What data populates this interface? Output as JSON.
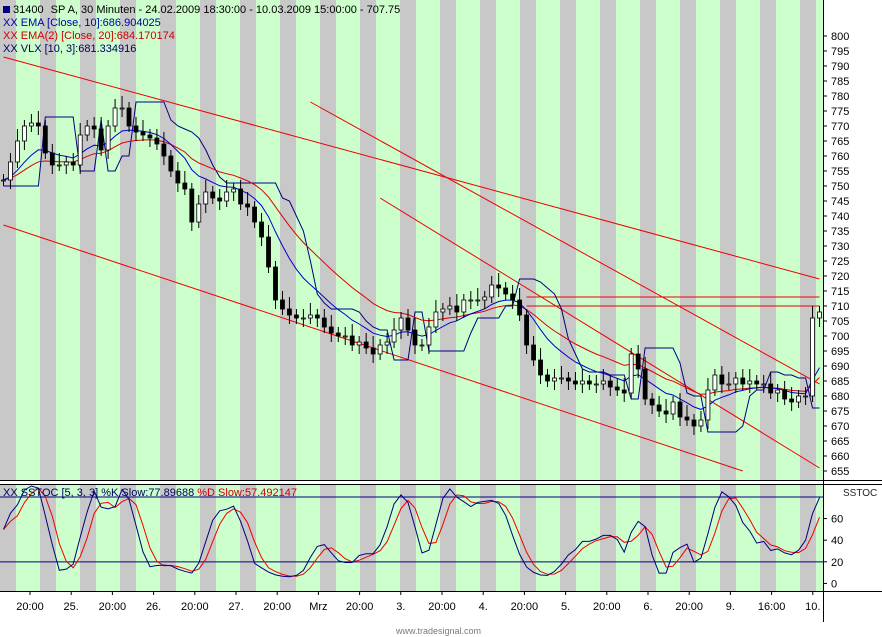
{
  "header": {
    "symbol": "31400",
    "title": "SP A, 30 Minuten - 24.02.2009 18:30:00 - 10.03.2009 15:00:00 - 707.75"
  },
  "legend": {
    "prefix": "XX",
    "ema10": "EMA [Close, 10]:686.904025",
    "ema20": "EMA(2) [Close, 20]:684.170174",
    "vlx": "VLX [10, 3]:681.334916",
    "sstoc_k": "SSTOC [5, 3, 3] %K Slow:77.89688",
    "sstoc_d": "%D Slow:57.492147"
  },
  "panels": {
    "main_label": "",
    "sub_label": "SSTOC"
  },
  "watermark": "www.tradesignal.com",
  "colors": {
    "up_bg": "#ccffcc",
    "gap_bg": "#c8c8c8",
    "price": "#000000",
    "ema10": "#0000cc",
    "ema20": "#dd0000",
    "vlx": "#000080",
    "channel": "#ee0000",
    "k_line": "#000080",
    "d_line": "#ee0000",
    "level_line": "#000080"
  },
  "chart_data": [
    {
      "type": "candlestick",
      "title": "SP A, 30 Minuten",
      "ylim": [
        652,
        812
      ],
      "y_ticks": [
        655,
        660,
        665,
        670,
        675,
        680,
        685,
        690,
        695,
        700,
        705,
        710,
        715,
        720,
        725,
        730,
        735,
        740,
        745,
        750,
        755,
        760,
        765,
        770,
        775,
        780,
        785,
        790,
        795,
        800
      ],
      "x_ticks": [
        "20:00",
        "25.",
        "20:00",
        "26.",
        "20:00",
        "27.",
        "20:00",
        "Mrz",
        "20:00",
        "3.",
        "20:00",
        "4.",
        "20:00",
        "5.",
        "20:00",
        "6.",
        "20:00",
        "9.",
        "16:00",
        "10."
      ],
      "grid": false,
      "close": [
        752,
        758,
        765,
        770,
        771,
        770,
        761,
        757,
        757,
        758,
        757,
        767,
        770,
        769,
        762,
        770,
        776,
        776,
        770,
        768,
        767,
        766,
        764,
        760,
        755,
        751,
        749,
        738,
        744,
        748,
        746,
        745,
        748,
        749,
        744,
        743,
        738,
        733,
        723,
        712,
        709,
        707,
        706,
        706,
        707,
        706,
        703,
        701,
        700,
        700,
        697,
        698,
        696,
        694,
        697,
        698,
        702,
        706,
        702,
        697,
        697,
        703,
        708,
        709,
        710,
        708,
        712,
        712,
        712,
        713,
        717,
        716,
        714,
        712,
        707,
        697,
        692,
        687,
        685,
        686,
        686,
        685,
        684,
        685,
        684,
        684,
        685,
        683,
        682,
        681,
        694,
        689,
        679,
        677,
        675,
        674,
        678,
        673,
        672,
        670,
        672,
        682,
        687,
        684,
        684,
        686,
        684,
        685,
        684,
        684,
        681,
        682,
        679,
        678,
        680,
        680,
        706,
        708
      ],
      "series": [
        {
          "name": "EMA [Close, 10]",
          "value": 686.904025
        },
        {
          "name": "EMA(2) [Close, 20]",
          "value": 684.170174
        },
        {
          "name": "VLX [10, 3]",
          "value": 681.334916
        }
      ],
      "trendlines": [
        {
          "from": [
            0,
            793
          ],
          "to": [
            117,
            719
          ]
        },
        {
          "from": [
            0,
            737
          ],
          "to": [
            106,
            655
          ]
        },
        {
          "from": [
            44,
            778
          ],
          "to": [
            117,
            684
          ]
        },
        {
          "from": [
            54,
            746
          ],
          "to": [
            117,
            656
          ]
        },
        {
          "from": [
            75,
            713
          ],
          "to": [
            117,
            713
          ]
        },
        {
          "from": [
            75,
            710
          ],
          "to": [
            117,
            710
          ]
        }
      ]
    },
    {
      "type": "line",
      "title": "SSTOC [5, 3, 3]",
      "ylim": [
        -7,
        92
      ],
      "y_ticks": [
        0,
        20,
        40,
        60
      ],
      "levels": [
        80,
        20
      ],
      "series": [
        {
          "name": "%K Slow",
          "value": 77.89688
        },
        {
          "name": "%D Slow",
          "value": 57.492147
        }
      ]
    }
  ]
}
